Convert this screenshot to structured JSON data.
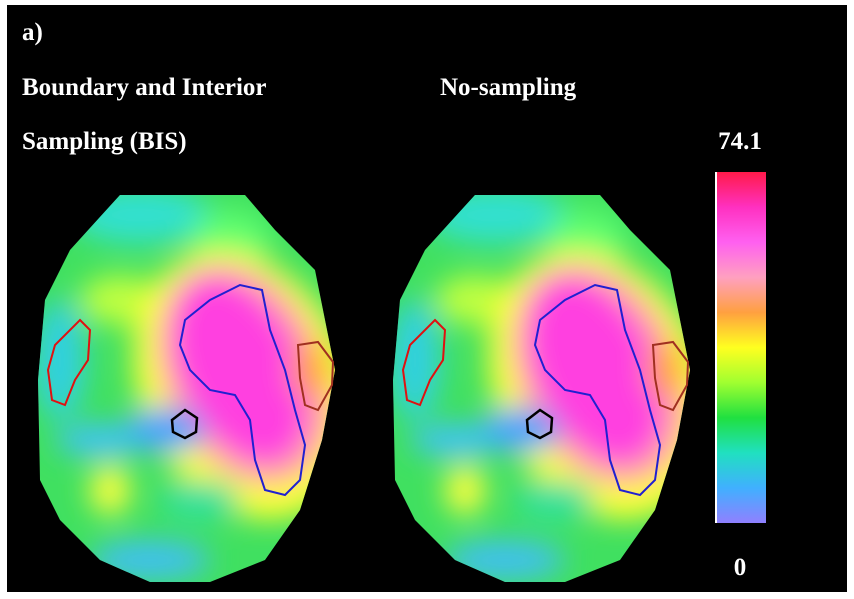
{
  "figure": {
    "label": "a)",
    "panels": [
      {
        "title": [
          "Boundary and Interior",
          "Sampling (BIS)"
        ]
      },
      {
        "title": [
          "No-sampling"
        ]
      }
    ],
    "colorbar": {
      "max": 74.1,
      "min": 0
    }
  }
}
